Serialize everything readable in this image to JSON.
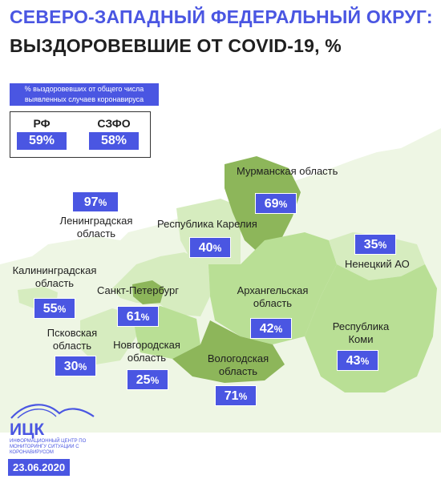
{
  "title_line1": "СЕВЕРО-ЗАПАДНЫЙ ФЕДЕРАЛЬНЫЙ ОКРУГ:",
  "title_line2": "ВЫЗДОРОВЕВШИЕ ОТ COVID-19, %",
  "legend": {
    "label": "% выздоровевших от общего числа выявленных случаев коронавируса",
    "rf_name": "РФ",
    "rf_value": "59",
    "szfo_name": "СЗФО",
    "szfo_value": "58"
  },
  "percent_sign": "%",
  "regions": {
    "murmansk": {
      "name": "Мурманская область",
      "value": "69"
    },
    "leningrad": {
      "name": "Ленинградская область",
      "value": "97"
    },
    "karelia": {
      "name": "Республика Карелия",
      "value": "40"
    },
    "nenets": {
      "name": "Ненецкий АО",
      "value": "35"
    },
    "kaliningrad": {
      "name": "Калининградская область",
      "value": "55"
    },
    "spb": {
      "name": "Санкт-Петербург",
      "value": "61"
    },
    "arkhangelsk": {
      "name": "Архангельская область",
      "value": "42"
    },
    "komi": {
      "name": "Республика Коми",
      "value": "43"
    },
    "pskov": {
      "name": "Псковская область",
      "value": "30"
    },
    "novgorod": {
      "name": "Новгородская область",
      "value": "25"
    },
    "vologda": {
      "name": "Вологодская область",
      "value": "71"
    }
  },
  "logo": {
    "name": "ИЦК",
    "subtitle": "Информационный центр по мониторингу ситуации с коронавирусом"
  },
  "date": "23.06.2020",
  "colors": {
    "accent": "#4a56e2",
    "region_light": "#d6ecbf",
    "region_mid": "#b9df95",
    "region_dark": "#8db65a",
    "outer": "#eef6e4"
  }
}
